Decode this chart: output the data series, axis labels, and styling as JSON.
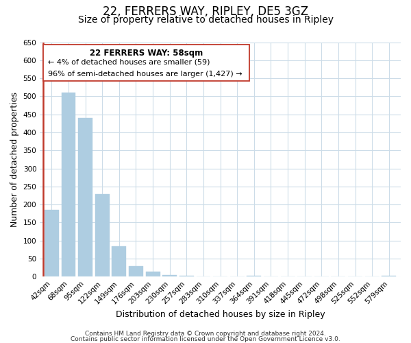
{
  "title": "22, FERRERS WAY, RIPLEY, DE5 3GZ",
  "subtitle": "Size of property relative to detached houses in Ripley",
  "xlabel": "Distribution of detached houses by size in Ripley",
  "ylabel": "Number of detached properties",
  "categories": [
    "42sqm",
    "68sqm",
    "95sqm",
    "122sqm",
    "149sqm",
    "176sqm",
    "203sqm",
    "230sqm",
    "257sqm",
    "283sqm",
    "310sqm",
    "337sqm",
    "364sqm",
    "391sqm",
    "418sqm",
    "445sqm",
    "472sqm",
    "498sqm",
    "525sqm",
    "552sqm",
    "579sqm"
  ],
  "values": [
    185,
    510,
    440,
    228,
    85,
    29,
    14,
    4,
    2,
    1,
    0,
    0,
    2,
    0,
    0,
    1,
    0,
    0,
    0,
    0,
    2
  ],
  "bar_color_default": "#aecde1",
  "bar_color_highlight": "#c0392b",
  "highlight_index": -1,
  "red_line_x": -0.5,
  "ylim": [
    0,
    650
  ],
  "yticks": [
    0,
    50,
    100,
    150,
    200,
    250,
    300,
    350,
    400,
    450,
    500,
    550,
    600,
    650
  ],
  "annotation_box_text_lines": [
    "22 FERRERS WAY: 58sqm",
    "← 4% of detached houses are smaller (59)",
    "96% of semi-detached houses are larger (1,427) →"
  ],
  "footer_line1": "Contains HM Land Registry data © Crown copyright and database right 2024.",
  "footer_line2": "Contains public sector information licensed under the Open Government Licence v3.0.",
  "background_color": "#ffffff",
  "grid_color": "#ccdce8",
  "title_fontsize": 12,
  "subtitle_fontsize": 10,
  "axis_label_fontsize": 9,
  "tick_fontsize": 7.5,
  "footer_fontsize": 6.5,
  "annotation_fontsize": 8.5
}
